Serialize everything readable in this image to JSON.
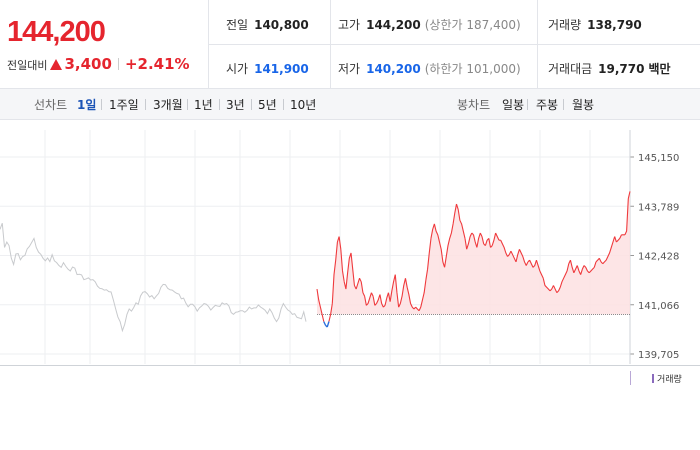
{
  "quote": {
    "price": "144,200",
    "change_label": "전일대비",
    "change_value": "3,400",
    "change_percent": "+2.41%",
    "direction": "up",
    "up_color": "#e5252e",
    "down_color": "#1865e8"
  },
  "stats": {
    "prev_close": {
      "label": "전일",
      "value": "140,800"
    },
    "open": {
      "label": "시가",
      "value": "141,900"
    },
    "high": {
      "label": "고가",
      "value": "144,200",
      "note": "(상한가 187,400)"
    },
    "low": {
      "label": "저가",
      "value": "140,200",
      "note": "(하한가 101,000)"
    },
    "volume": {
      "label": "거래량",
      "value": "138,790"
    },
    "trade_value": {
      "label": "거래대금",
      "value": "19,770",
      "unit": "백만"
    }
  },
  "tabs": {
    "line_label": "선차트",
    "periods": [
      "1일",
      "1주일",
      "3개월",
      "1년",
      "3년",
      "5년",
      "10년"
    ],
    "active_period": "1일",
    "candle_label": "봉차트",
    "candles": [
      "일봉",
      "주봉",
      "월봉"
    ]
  },
  "chart_data": {
    "type": "line",
    "ylim": [
      139705,
      145150
    ],
    "y_ticks": [
      "145,150",
      "143,789",
      "142,428",
      "141,066",
      "139,705"
    ],
    "baseline": 140800,
    "series": [
      {
        "values": [
          143150,
          143320,
          142650,
          142800,
          142700,
          142350,
          142180,
          142470,
          142480,
          142310,
          142400,
          142430,
          142610,
          142680,
          142790,
          142900,
          142650,
          142520,
          142460,
          142350,
          142280,
          142360,
          142260,
          142450,
          142280,
          142230,
          142150,
          142100,
          142230,
          142130,
          142050,
          142000,
          142110,
          142080,
          141900,
          141910,
          141890,
          141760,
          141780,
          141810,
          141750,
          141760,
          141700,
          141580,
          141520,
          141510,
          141470,
          141480,
          141430,
          141420,
          141200,
          140960,
          140730,
          140600,
          140350,
          140520,
          140800,
          140950,
          140890,
          140990,
          141120,
          141080,
          141310,
          141410,
          141430,
          141370,
          141280,
          141320,
          141230,
          141310,
          141380,
          141550,
          141630,
          141620,
          141520,
          141480,
          141470,
          141420,
          141380,
          141360,
          141230,
          141250,
          141110,
          141010,
          141080,
          141080,
          141010,
          140890,
          140980,
          141030,
          141100,
          141080,
          141020,
          140920,
          140990,
          141050,
          141030,
          141020,
          141120,
          141080,
          141100,
          141030,
          140850,
          140800,
          140860,
          140870,
          140900,
          140900,
          140860,
          140910,
          141000,
          140950,
          140980,
          140980,
          141060,
          141000,
          140960,
          140910,
          140820,
          140950,
          140850,
          140700,
          140600,
          140700,
          140950,
          141100,
          141000,
          140920,
          140880,
          140800,
          140820,
          140720,
          140700,
          140680,
          140870,
          140600
        ]
      },
      {
        "values": [
          141500,
          141200,
          141000,
          140800,
          140600,
          140500,
          140450,
          140600,
          140800,
          141100,
          141900,
          142300,
          142800,
          142950,
          142600,
          142000,
          141700,
          141500,
          141950,
          142350,
          142500,
          142050,
          141600,
          141500,
          141650,
          141800,
          141700,
          141400,
          141300,
          141050,
          141100,
          141250,
          141400,
          141300,
          141050,
          141100,
          141200,
          141350,
          141100,
          141000,
          141050,
          141250,
          141400,
          141150,
          141450,
          141700,
          141900,
          141400,
          141000,
          141100,
          141300,
          141600,
          141800,
          141550,
          141350,
          141100,
          141000,
          140950,
          141000,
          140950,
          140900,
          141000,
          141200,
          141400,
          141750,
          142050,
          142500,
          142900,
          143150,
          143300,
          143100,
          143000,
          142800,
          142600,
          142250,
          142100,
          142400,
          142700,
          142900,
          143050,
          143300,
          143600,
          143850,
          143700,
          143400,
          143300,
          143100,
          142900,
          142600,
          142750,
          142950,
          143050,
          143000,
          142800,
          142650,
          142900,
          143050,
          142950,
          142750,
          142700,
          142850,
          142900,
          142650,
          142700,
          142850,
          143050,
          142950,
          142850,
          142850,
          142750,
          142650,
          142500,
          142400,
          142450,
          142550,
          142450,
          142350,
          142250,
          142450,
          142600,
          142500,
          142400,
          142250,
          142150,
          142250,
          142300,
          142200,
          142100,
          142150,
          142300,
          142150,
          142000,
          141900,
          141800,
          141600,
          141550,
          141500,
          141450,
          141500,
          141600,
          141500,
          141400,
          141450,
          141550,
          141700,
          141800,
          141900,
          142000,
          142200,
          142300,
          142100,
          141950,
          142050,
          142150,
          142000,
          141900,
          142050,
          142150,
          142100,
          142000,
          141950,
          142000,
          142050,
          142100,
          142250,
          142300,
          142350,
          142250,
          142200,
          142250,
          142300,
          142400,
          142500,
          142650,
          142800,
          142950,
          142800,
          142850,
          142900,
          143000,
          143000,
          143000,
          143100,
          144000,
          144200
        ]
      }
    ]
  },
  "volume_legend": "거래량"
}
